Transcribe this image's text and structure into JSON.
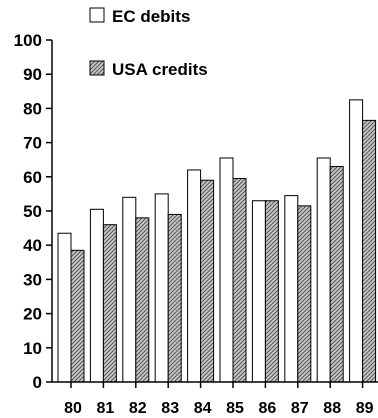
{
  "chart_data": {
    "type": "bar",
    "categories": [
      "80",
      "81",
      "82",
      "83",
      "84",
      "85",
      "86",
      "87",
      "88",
      "89"
    ],
    "series": [
      {
        "name": "EC debits",
        "values": [
          43.5,
          50.5,
          54,
          55,
          62,
          65.5,
          53,
          54.5,
          65.5,
          82.5
        ],
        "color": "#ffffff"
      },
      {
        "name": "USA credits",
        "values": [
          38.5,
          46,
          48,
          49,
          59,
          59.5,
          53,
          51.5,
          63,
          76.5
        ],
        "color": "#b0b0b0"
      }
    ],
    "yticks": [
      0,
      10,
      20,
      30,
      40,
      50,
      60,
      70,
      80,
      90,
      100
    ],
    "ylim": [
      0,
      100
    ],
    "legend_position": "top-left"
  }
}
